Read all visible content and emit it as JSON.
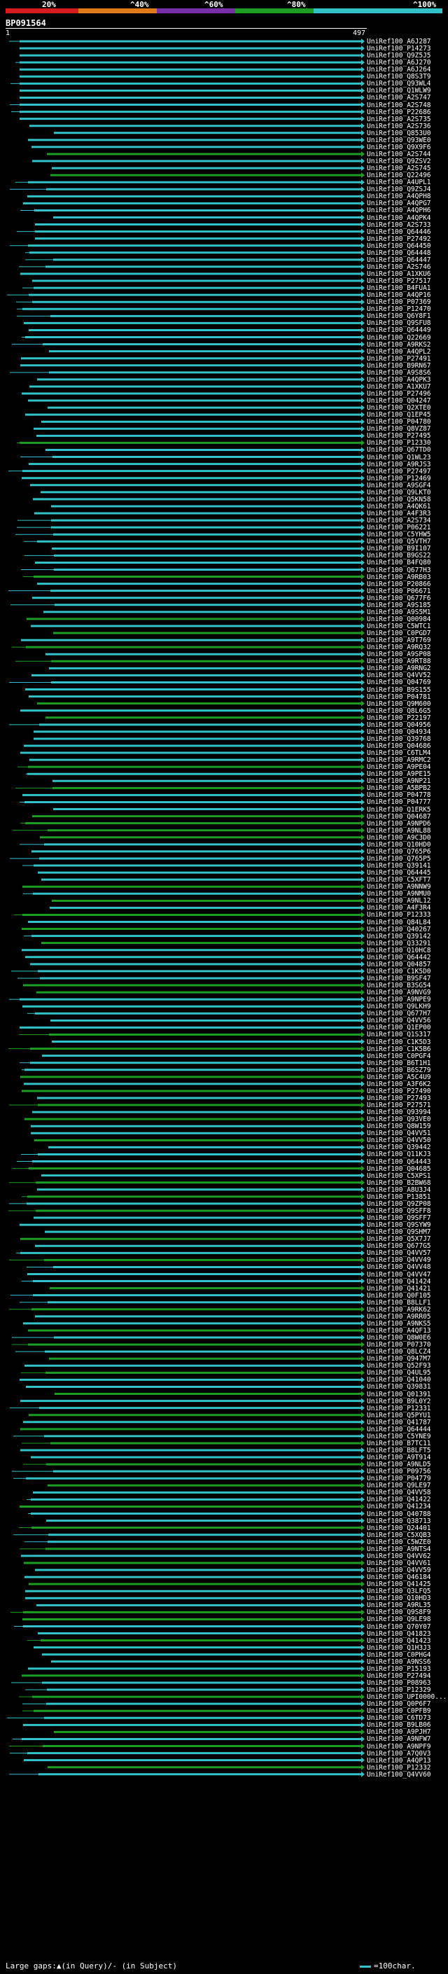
{
  "legend": {
    "labels": [
      "20%",
      "^40%",
      "^60%",
      "^80%",
      "^100%"
    ],
    "colors": [
      "#d61c1c",
      "#e07a18",
      "#7a2fa8",
      "#1b9e23",
      "#31c3c8"
    ]
  },
  "query": {
    "id": "BP091564",
    "start": "1",
    "end": "497"
  },
  "footer": {
    "text": "Large gaps:▲(in Query)/- (in Subject)",
    "scale": "=100char."
  },
  "hits": [
    [
      "UniRef100_A6J287",
      "c"
    ],
    [
      "UniRef100_P14273",
      "c"
    ],
    [
      "UniRef100_Q9Z5J5",
      "c"
    ],
    [
      "UniRef100_A6J270",
      "c"
    ],
    [
      "UniRef100_A6J264",
      "c"
    ],
    [
      "UniRef100_Q8S3T9",
      "c"
    ],
    [
      "UniRef100_Q93WL4",
      "c"
    ],
    [
      "UniRef100_Q1WLW9",
      "c"
    ],
    [
      "UniRef100_A2S747",
      "c"
    ],
    [
      "UniRef100_A2S748",
      "c"
    ],
    [
      "UniRef100_P22686",
      "c"
    ],
    [
      "UniRef100_A2S735",
      "c"
    ],
    [
      "UniRef100_A2S736",
      "c"
    ],
    [
      "UniRef100_Q853U0",
      "c"
    ],
    [
      "UniRef100_Q93WE0",
      "c"
    ],
    [
      "UniRef100_Q9X9F6",
      "c"
    ],
    [
      "UniRef100_A2S744",
      "g"
    ],
    [
      "UniRef100_Q9ZSV2",
      "c"
    ],
    [
      "UniRef100_A2S745",
      "c"
    ],
    [
      "UniRef100_Q22496",
      "g"
    ],
    [
      "UniRef100_A4UPL1",
      "c"
    ],
    [
      "UniRef100_Q9ZSJ4",
      "c"
    ],
    [
      "UniRef100_A4QPH8",
      "c"
    ],
    [
      "UniRef100_A4QPG7",
      "c"
    ],
    [
      "UniRef100_A4QPH6",
      "c"
    ],
    [
      "UniRef100_A4QPK4",
      "c"
    ],
    [
      "UniRef100_A2S733",
      "c"
    ],
    [
      "UniRef100_Q64446",
      "c"
    ],
    [
      "UniRef100_P27492",
      "c"
    ],
    [
      "UniRef100_Q64450",
      "c"
    ],
    [
      "UniRef100_Q64448",
      "c"
    ],
    [
      "UniRef100_Q64447",
      "c"
    ],
    [
      "UniRef100_A2S746",
      "c"
    ],
    [
      "UniRef100_A1XKU6",
      "c"
    ],
    [
      "UniRef100_P27517",
      "c"
    ],
    [
      "UniRef100_B4FUA1",
      "c"
    ],
    [
      "UniRef100_A4QP16",
      "c"
    ],
    [
      "UniRef100_P07369",
      "c"
    ],
    [
      "UniRef100_P12470",
      "c"
    ],
    [
      "UniRef100_Q6Y8F1",
      "c"
    ],
    [
      "UniRef100_Q9SFU8",
      "c"
    ],
    [
      "UniRef100_Q64449",
      "c"
    ],
    [
      "UniRef100_Q22669",
      "c"
    ],
    [
      "UniRef100_A9RKS2",
      "c"
    ],
    [
      "UniRef100_A4QPL2",
      "c"
    ],
    [
      "UniRef100_P27491",
      "c"
    ],
    [
      "UniRef100_B9RN67",
      "c"
    ],
    [
      "UniRef100_A9S8S6",
      "c"
    ],
    [
      "UniRef100_A4QPK3",
      "c"
    ],
    [
      "UniRef100_A1XKU7",
      "c"
    ],
    [
      "UniRef100_P27496",
      "c"
    ],
    [
      "UniRef100_Q04247",
      "c"
    ],
    [
      "UniRef100_Q2XTE0",
      "c"
    ],
    [
      "UniRef100_Q1EP45",
      "c"
    ],
    [
      "UniRef100_P04780",
      "c"
    ],
    [
      "UniRef100_Q8VZ87",
      "c"
    ],
    [
      "UniRef100_P27495",
      "c"
    ],
    [
      "UniRef100_P12330",
      "g"
    ],
    [
      "UniRef100_Q67TD0",
      "c"
    ],
    [
      "UniRef100_Q1WL23",
      "c"
    ],
    [
      "UniRef100_A9RJS3",
      "c"
    ],
    [
      "UniRef100_P27497",
      "c"
    ],
    [
      "UniRef100_P12469",
      "c"
    ],
    [
      "UniRef100_A9SGF4",
      "c"
    ],
    [
      "UniRef100_Q9LKT0",
      "c"
    ],
    [
      "UniRef100_Q5KN58",
      "c"
    ],
    [
      "UniRef100_A4QK61",
      "c"
    ],
    [
      "UniRef100_A4F3R3",
      "c"
    ],
    [
      "UniRef100_A2S734",
      "c"
    ],
    [
      "UniRef100_P06221",
      "c"
    ],
    [
      "UniRef100_C5YHW5",
      "c"
    ],
    [
      "UniRef100_Q5VTH7",
      "c"
    ],
    [
      "UniRef100_B9I107",
      "c"
    ],
    [
      "UniRef100_B9GS22",
      "c"
    ],
    [
      "UniRef100_B4FQ80",
      "c"
    ],
    [
      "UniRef100_Q677H3",
      "c"
    ],
    [
      "UniRef100_A9RB03",
      "g"
    ],
    [
      "UniRef100_P20866",
      "c"
    ],
    [
      "UniRef100_P06671",
      "c"
    ],
    [
      "UniRef100_Q677F6",
      "c"
    ],
    [
      "UniRef100_A9S185",
      "c"
    ],
    [
      "UniRef100_A9S5M1",
      "c"
    ],
    [
      "UniRef100_Q00984",
      "g"
    ],
    [
      "UniRef100_C5WTC1",
      "c"
    ],
    [
      "UniRef100_C0PGD7",
      "g"
    ],
    [
      "UniRef100_A9T769",
      "c"
    ],
    [
      "UniRef100_A9RQ32",
      "g"
    ],
    [
      "UniRef100_A9SP08",
      "c"
    ],
    [
      "UniRef100_A9RT88",
      "g"
    ],
    [
      "UniRef100_A9RNG2",
      "c"
    ],
    [
      "UniRef100_Q4VV52",
      "c"
    ],
    [
      "UniRef100_Q04769",
      "c"
    ],
    [
      "UniRef100_B9S155",
      "c"
    ],
    [
      "UniRef100_P04781",
      "c"
    ],
    [
      "UniRef100_Q9M600",
      "g"
    ],
    [
      "UniRef100_Q8L6G5",
      "c"
    ],
    [
      "UniRef100_P22197",
      "g"
    ],
    [
      "UniRef100_Q04956",
      "c"
    ],
    [
      "UniRef100_Q04934",
      "c"
    ],
    [
      "UniRef100_Q39768",
      "c"
    ],
    [
      "UniRef100_Q04686",
      "c"
    ],
    [
      "UniRef100_C6TLM4",
      "c"
    ],
    [
      "UniRef100_A9RMC2",
      "c"
    ],
    [
      "UniRef100_A9PE04",
      "g"
    ],
    [
      "UniRef100_A9PE15",
      "c"
    ],
    [
      "UniRef100_A9NP21",
      "c"
    ],
    [
      "UniRef100_A5BPB2",
      "g"
    ],
    [
      "UniRef100_P04778",
      "c"
    ],
    [
      "UniRef100_P04777",
      "c"
    ],
    [
      "UniRef100_Q1ERK5",
      "c"
    ],
    [
      "UniRef100_Q04687",
      "g"
    ],
    [
      "UniRef100_A9NPD6",
      "g"
    ],
    [
      "UniRef100_A9NL88",
      "g"
    ],
    [
      "UniRef100_A9C3D0",
      "g"
    ],
    [
      "UniRef100_Q10HD0",
      "c"
    ],
    [
      "UniRef100_Q765P6",
      "c"
    ],
    [
      "UniRef100_Q765P5",
      "c"
    ],
    [
      "UniRef100_Q39141",
      "c"
    ],
    [
      "UniRef100_Q64445",
      "c"
    ],
    [
      "UniRef100_C5XFT7",
      "c"
    ],
    [
      "UniRef100_A9NNW9",
      "g"
    ],
    [
      "UniRef100_A9NMU0",
      "c"
    ],
    [
      "UniRef100_A9NL12",
      "g"
    ],
    [
      "UniRef100_A4F3R4",
      "c"
    ],
    [
      "UniRef100_P12333",
      "g"
    ],
    [
      "UniRef100_Q84L84",
      "c"
    ],
    [
      "UniRef100_Q40267",
      "g"
    ],
    [
      "UniRef100_Q39142",
      "c"
    ],
    [
      "UniRef100_Q33291",
      "g"
    ],
    [
      "UniRef100_Q10HC8",
      "c"
    ],
    [
      "UniRef100_Q64442",
      "c"
    ],
    [
      "UniRef100_Q04857",
      "c"
    ],
    [
      "UniRef100_C1K5D0",
      "c"
    ],
    [
      "UniRef100_B9SF47",
      "c"
    ],
    [
      "UniRef100_B3SG54",
      "g"
    ],
    [
      "UniRef100_A9NVG9",
      "g"
    ],
    [
      "UniRef100_A9NPE9",
      "c"
    ],
    [
      "UniRef100_Q9LKH9",
      "c"
    ],
    [
      "UniRef100_Q677H7",
      "c"
    ],
    [
      "UniRef100_Q4VV56",
      "c"
    ],
    [
      "UniRef100_Q1EP00",
      "c"
    ],
    [
      "UniRef100_Q1S317",
      "g"
    ],
    [
      "UniRef100_C1K5D3",
      "c"
    ],
    [
      "UniRef100_C1K5B6",
      "g"
    ],
    [
      "UniRef100_C0PGF4",
      "c"
    ],
    [
      "UniRef100_B6T1H1",
      "c"
    ],
    [
      "UniRef100_B6SZ79",
      "c"
    ],
    [
      "UniRef100_A5C4U9",
      "g"
    ],
    [
      "UniRef100_A3F6K2",
      "c"
    ],
    [
      "UniRef100_P27490",
      "g"
    ],
    [
      "UniRef100_P27493",
      "c"
    ],
    [
      "UniRef100_P27571",
      "g"
    ],
    [
      "UniRef100_Q93994",
      "c"
    ],
    [
      "UniRef100_Q93VE0",
      "g"
    ],
    [
      "UniRef100_Q8W159",
      "c"
    ],
    [
      "UniRef100_Q4VV51",
      "c"
    ],
    [
      "UniRef100_Q4VV50",
      "g"
    ],
    [
      "UniRef100_Q39442",
      "c"
    ],
    [
      "UniRef100_Q11KJ3",
      "c"
    ],
    [
      "UniRef100_Q64443",
      "c"
    ],
    [
      "UniRef100_Q04685",
      "g"
    ],
    [
      "UniRef100_C5XPS1",
      "c"
    ],
    [
      "UniRef100_B2BW68",
      "g"
    ],
    [
      "UniRef100_A8U3J4",
      "c"
    ],
    [
      "UniRef100_P13851",
      "g"
    ],
    [
      "UniRef100_Q9ZP08",
      "c"
    ],
    [
      "UniRef100_Q9SFF8",
      "g"
    ],
    [
      "UniRef100_Q9SFF7",
      "c"
    ],
    [
      "UniRef100_Q9SYW9",
      "c"
    ],
    [
      "UniRef100_Q9SHM7",
      "c"
    ],
    [
      "UniRef100_Q5X7J7",
      "g"
    ],
    [
      "UniRef100_Q677G5",
      "c"
    ],
    [
      "UniRef100_Q4VV57",
      "c"
    ],
    [
      "UniRef100_Q4VV49",
      "g"
    ],
    [
      "UniRef100_Q4VV48",
      "c"
    ],
    [
      "UniRef100_Q4VV47",
      "c"
    ],
    [
      "UniRef100_Q41424",
      "c"
    ],
    [
      "UniRef100_Q41421",
      "g"
    ],
    [
      "UniRef100_Q0F105",
      "c"
    ],
    [
      "UniRef100_B8LLF1",
      "c"
    ],
    [
      "UniRef100_A9RK62",
      "g"
    ],
    [
      "UniRef100_A9RR05",
      "c"
    ],
    [
      "UniRef100_A9NKS5",
      "c"
    ],
    [
      "UniRef100_A4QF13",
      "g"
    ],
    [
      "UniRef100_Q8W0E6",
      "c"
    ],
    [
      "UniRef100_P07370",
      "g"
    ],
    [
      "UniRef100_Q8LCZ4",
      "c"
    ],
    [
      "UniRef100_Q947M7",
      "g"
    ],
    [
      "UniRef100_Q52F93",
      "c"
    ],
    [
      "UniRef100_Q4UL95",
      "g"
    ],
    [
      "UniRef100_Q41040",
      "c"
    ],
    [
      "UniRef100_Q39831",
      "c"
    ],
    [
      "UniRef100_Q01391",
      "g"
    ],
    [
      "UniRef100_B9L0Y2",
      "c"
    ],
    [
      "UniRef100_P12331",
      "c"
    ],
    [
      "UniRef100_Q5PYU1",
      "g"
    ],
    [
      "UniRef100_Q41787",
      "c"
    ],
    [
      "UniRef100_Q64444",
      "g"
    ],
    [
      "UniRef100_C5YNE9",
      "c"
    ],
    [
      "UniRef100_B7TC11",
      "g"
    ],
    [
      "UniRef100_B8LFT5",
      "c"
    ],
    [
      "UniRef100_A9T914",
      "c"
    ],
    [
      "UniRef100_A9NLD5",
      "g"
    ],
    [
      "UniRef100_P09756",
      "c"
    ],
    [
      "UniRef100_P04779",
      "c"
    ],
    [
      "UniRef100_Q9LE97",
      "g"
    ],
    [
      "UniRef100_Q4VV58",
      "c"
    ],
    [
      "UniRef100_Q41422",
      "c"
    ],
    [
      "UniRef100_Q41234",
      "g"
    ],
    [
      "UniRef100_Q40788",
      "c"
    ],
    [
      "UniRef100_Q38713",
      "c"
    ],
    [
      "UniRef100_Q24401",
      "g"
    ],
    [
      "UniRef100_C5XQB3",
      "c"
    ],
    [
      "UniRef100_C5WZE0",
      "c"
    ],
    [
      "UniRef100_A9NTS4",
      "g"
    ],
    [
      "UniRef100_Q4VV62",
      "c"
    ],
    [
      "UniRef100_Q4VV61",
      "g"
    ],
    [
      "UniRef100_Q4VV59",
      "c"
    ],
    [
      "UniRef100_Q46184",
      "c"
    ],
    [
      "UniRef100_Q41425",
      "g"
    ],
    [
      "UniRef100_Q3LFQ5",
      "c"
    ],
    [
      "UniRef100_Q10HD3",
      "c"
    ],
    [
      "UniRef100_A9RL35",
      "c"
    ],
    [
      "UniRef100_Q9S8F9",
      "g"
    ],
    [
      "UniRef100_Q9LE98",
      "g"
    ],
    [
      "UniRef100_Q70Y07",
      "c"
    ],
    [
      "UniRef100_Q41823",
      "c"
    ],
    [
      "UniRef100_Q41423",
      "g"
    ],
    [
      "UniRef100_Q1H3J3",
      "c"
    ],
    [
      "UniRef100_C0PHG4",
      "c"
    ],
    [
      "UniRef100_A9NSS6",
      "c"
    ],
    [
      "UniRef100_P15193",
      "c"
    ],
    [
      "UniRef100_P27494",
      "g"
    ],
    [
      "UniRef100_P08963",
      "c"
    ],
    [
      "UniRef100_P12329",
      "c"
    ],
    [
      "UniRef100_UPI0000...",
      "g"
    ],
    [
      "UniRef100_Q0P6F7",
      "c"
    ],
    [
      "UniRef100_C0PFB9",
      "g"
    ],
    [
      "UniRef100_C6TD73",
      "c"
    ],
    [
      "UniRef100_B9LB06",
      "c"
    ],
    [
      "UniRef100_A9PJH7",
      "g"
    ],
    [
      "UniRef100_A9NFW7",
      "c"
    ],
    [
      "UniRef100_A9NPF9",
      "g"
    ],
    [
      "UniRef100_A7Q0V3",
      "c"
    ],
    [
      "UniRef100_A4QP13",
      "c"
    ],
    [
      "UniRef100_P12332",
      "g"
    ],
    [
      "UniRef100_Q4VV60",
      "c"
    ]
  ]
}
